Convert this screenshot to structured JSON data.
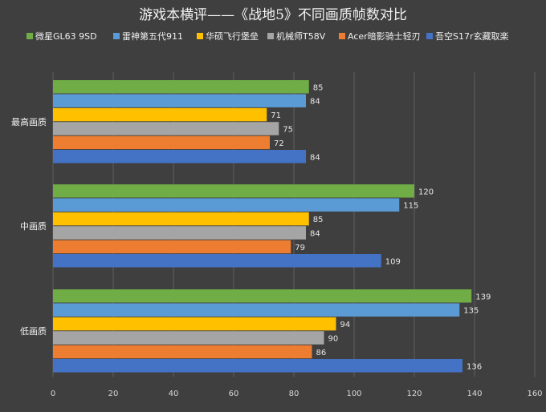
{
  "chart_data": {
    "type": "bar",
    "orientation": "horizontal",
    "title": "游戏本横评——《战地5》不同画质帧数对比",
    "categories": [
      "最高画质",
      "中画质",
      "低画质"
    ],
    "series": [
      {
        "name": "微星GL63 9SD",
        "color": "#70ad47",
        "values": [
          85,
          120,
          139
        ]
      },
      {
        "name": "雷神第五代911",
        "color": "#5b9bd5",
        "values": [
          84,
          115,
          135
        ]
      },
      {
        "name": "华硕飞行堡垒",
        "color": "#ffc000",
        "values": [
          71,
          85,
          94
        ]
      },
      {
        "name": "机械师T58V",
        "color": "#a5a5a5",
        "values": [
          75,
          84,
          90
        ]
      },
      {
        "name": "Acer暗影骑士轻刃",
        "color": "#ed7d31",
        "values": [
          72,
          79,
          86
        ]
      },
      {
        "name": "吾空S17r玄藏取楽",
        "color": "#4472c4",
        "values": [
          84,
          109,
          136
        ]
      }
    ],
    "xlim": [
      0,
      160
    ],
    "xticks": [
      0,
      20,
      40,
      60,
      80,
      100,
      120,
      140,
      160
    ],
    "grid": true,
    "legend_position": "top"
  }
}
